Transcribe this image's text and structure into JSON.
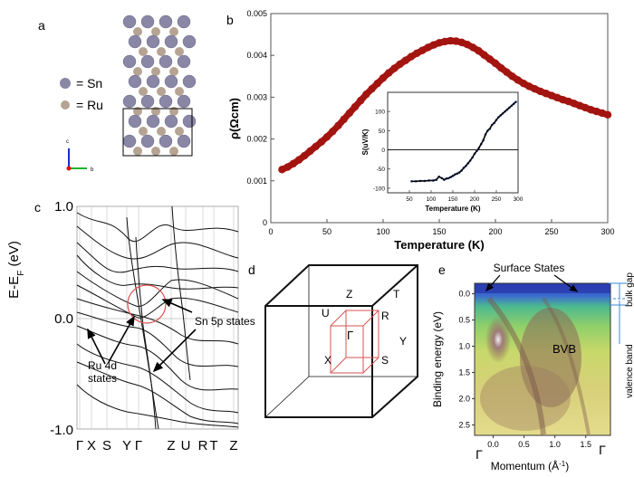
{
  "panel_letters": {
    "a": "a",
    "b": "b",
    "c": "c",
    "d": "d",
    "e": "e"
  },
  "legend_a": {
    "sn": "= Sn",
    "ru": "= Ru",
    "sn_color": "#8a86a6",
    "ru_color": "#b5a493"
  },
  "axes_glyph": {
    "c": "c",
    "b": "b"
  },
  "colors": {
    "resistivity": "#a31510",
    "inset_data": "#1f3fa8",
    "inset_fit": "#000000",
    "bz_inner": "#d9534f",
    "circle": "#d9534f"
  },
  "chart_data": [
    {
      "type": "scatter",
      "xlabel": "Temperature (K)",
      "ylabel": "ρ(Ωcm)",
      "xlim": [
        0,
        300
      ],
      "ylim": [
        0,
        0.005
      ],
      "xticks": [
        "0",
        "50",
        "100",
        "150",
        "200",
        "250",
        "300"
      ],
      "yticks": [
        "0",
        "0.001",
        "0.002",
        "0.003",
        "0.004",
        "0.005"
      ],
      "x": [
        10,
        15,
        20,
        25,
        30,
        35,
        40,
        45,
        50,
        55,
        60,
        65,
        70,
        75,
        80,
        85,
        90,
        95,
        100,
        105,
        110,
        115,
        120,
        125,
        130,
        135,
        140,
        145,
        150,
        155,
        160,
        165,
        170,
        175,
        180,
        185,
        190,
        195,
        200,
        205,
        210,
        215,
        220,
        225,
        230,
        235,
        240,
        245,
        250,
        255,
        260,
        265,
        270,
        275,
        280,
        285,
        290,
        295,
        300
      ],
      "y": [
        0.00127,
        0.00133,
        0.00141,
        0.0015,
        0.0016,
        0.00171,
        0.00182,
        0.00193,
        0.00205,
        0.00218,
        0.00232,
        0.00247,
        0.00262,
        0.00277,
        0.00292,
        0.00307,
        0.0032,
        0.00333,
        0.00346,
        0.00358,
        0.00369,
        0.00379,
        0.00388,
        0.00397,
        0.00405,
        0.00412,
        0.00419,
        0.00425,
        0.0043,
        0.00433,
        0.00435,
        0.00434,
        0.00431,
        0.00426,
        0.00419,
        0.00411,
        0.00401,
        0.00391,
        0.00381,
        0.0037,
        0.0036,
        0.0035,
        0.00341,
        0.00333,
        0.00326,
        0.0032,
        0.00314,
        0.00309,
        0.00304,
        0.00299,
        0.00294,
        0.0029,
        0.00285,
        0.0028,
        0.00275,
        0.0027,
        0.00266,
        0.00262,
        0.00258
      ]
    },
    {
      "type": "scatter",
      "xlabel": "Temperature (K)",
      "ylabel": "S(uV/K)",
      "xlim": [
        0,
        300
      ],
      "ylim": [
        -100,
        150
      ],
      "xticks": [
        "50",
        "100",
        "150",
        "200",
        "250",
        "300"
      ],
      "yticks": [
        "-100",
        "-50",
        "0",
        "50",
        "100"
      ],
      "x": [
        55,
        65,
        75,
        85,
        95,
        105,
        112,
        118,
        125,
        130,
        135,
        140,
        145,
        150,
        155,
        160,
        165,
        170,
        175,
        180,
        185,
        190,
        195,
        200,
        205,
        210,
        215,
        220,
        225,
        230,
        235,
        240,
        245,
        250,
        255,
        260,
        265,
        270,
        275,
        280,
        285,
        290,
        295
      ],
      "y": [
        -82,
        -82,
        -81,
        -81,
        -80,
        -80,
        -78,
        -70,
        -74,
        -78,
        -75,
        -74,
        -71,
        -68,
        -64,
        -62,
        -59,
        -54,
        -47,
        -42,
        -35,
        -28,
        -20,
        -10,
        -3,
        5,
        15,
        25,
        40,
        50,
        55,
        65,
        70,
        78,
        85,
        90,
        95,
        100,
        105,
        110,
        115,
        120,
        125
      ]
    },
    {
      "type": "line",
      "ylabel": "E-E_F (eV)",
      "ylim": [
        -1.0,
        1.0
      ],
      "yticks": [
        "1.0",
        "0.0",
        "-1.0"
      ],
      "kpath": [
        "Γ",
        "X",
        "S",
        "Y",
        "Γ",
        "Z",
        "U",
        "R",
        "T",
        "Z"
      ],
      "annotations": [
        "Ru 4d states",
        "Sn 5p states"
      ]
    },
    {
      "type": "heatmap",
      "xlabel": "Momentum (Å⁻¹)",
      "ylabel": "Binding energy (eV)",
      "xlim": [
        -0.3,
        1.9
      ],
      "ylim": [
        2.7,
        -0.2
      ],
      "xticks": [
        "0.0",
        "0.5",
        "1.0",
        "1.5"
      ],
      "yticks": [
        "0.0",
        "0.5",
        "1.0",
        "1.5",
        "2.0",
        "2.5"
      ],
      "gamma_labels": [
        "Γ",
        "Γ"
      ],
      "annotations": [
        "Surface States",
        "BVB",
        "bulk gap",
        "valence band"
      ]
    }
  ],
  "bz_labels": [
    "Z",
    "T",
    "U",
    "R",
    "Γ",
    "Y",
    "X",
    "S"
  ]
}
